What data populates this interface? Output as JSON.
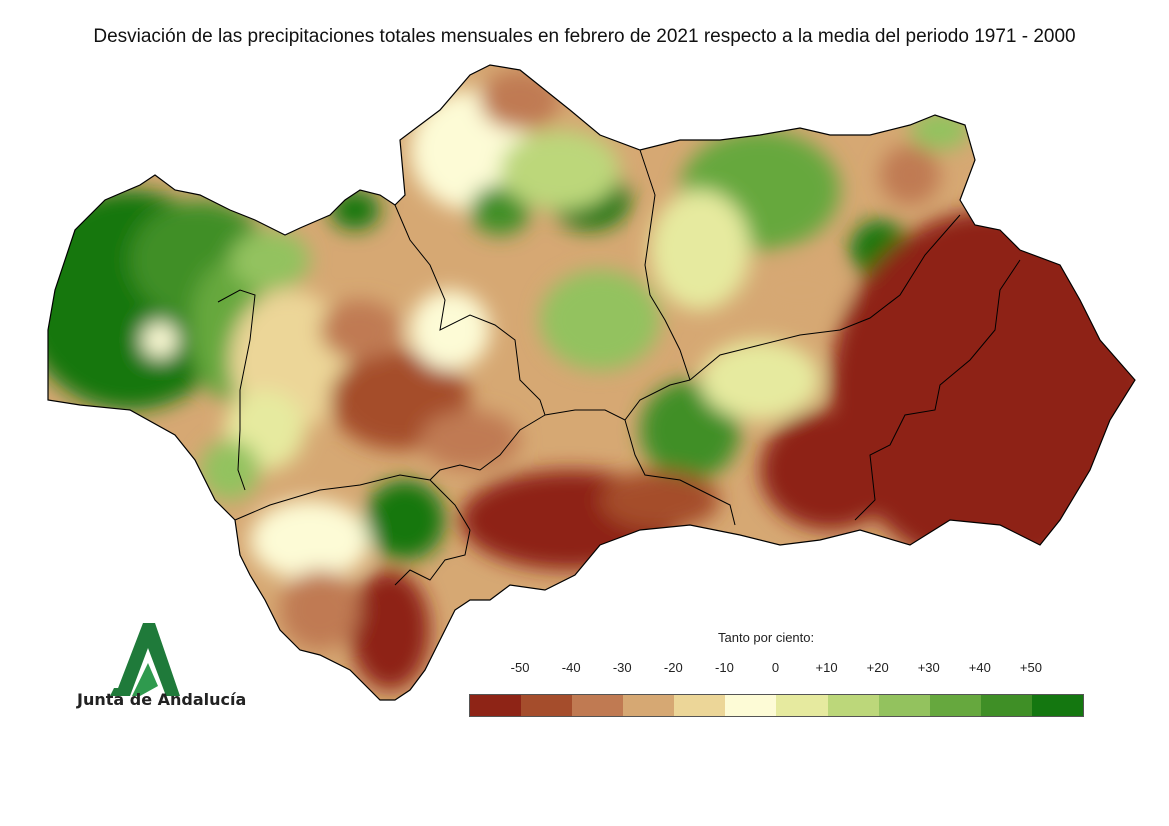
{
  "title": "Desviación de las precipitaciones totales mensuales en febrero de 2021 respecto a la media del periodo 1971 - 2000",
  "logo": {
    "text": "Junta de Andalucía",
    "icon": "junta-de-andalucia-logo"
  },
  "legend": {
    "title": "Tanto por ciento:",
    "labels": [
      "-50",
      "-40",
      "-30",
      "-20",
      "-10",
      "0",
      "+10",
      "+20",
      "+30",
      "+40",
      "+50"
    ],
    "colors": [
      "#8e2416",
      "#a54d2c",
      "#c07a52",
      "#d6a873",
      "#ecd698",
      "#fdfbd6",
      "#e6ea9f",
      "#bcd77a",
      "#93c25e",
      "#66a83e",
      "#3f8f26",
      "#147710"
    ]
  },
  "map": {
    "region": "Andalucía",
    "water": "#ffffff",
    "border_color": "#000000"
  }
}
